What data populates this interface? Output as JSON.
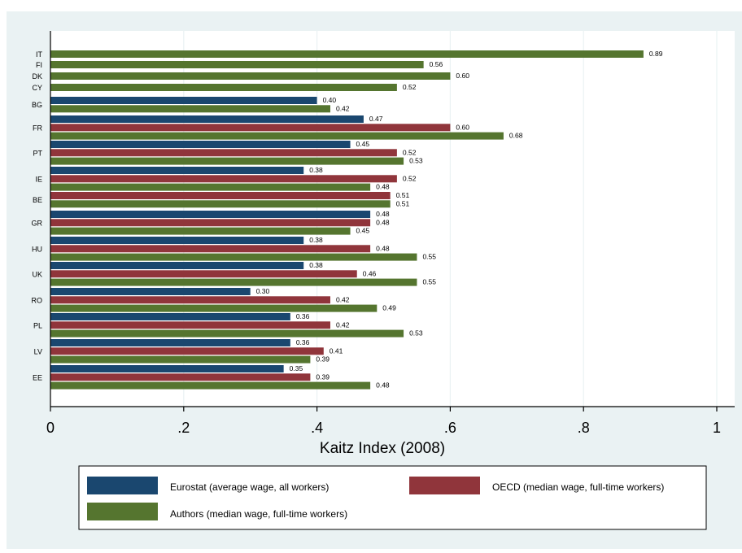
{
  "chart_data": {
    "type": "bar",
    "orientation": "horizontal",
    "categories": [
      "IT",
      "FI",
      "DK",
      "CY",
      "BG",
      "FR",
      "PT",
      "IE",
      "BE",
      "GR",
      "HU",
      "UK",
      "RO",
      "PL",
      "LV",
      "EE"
    ],
    "series": [
      {
        "name": "Eurostat (average wage, all workers)",
        "color": "#1a476f",
        "values": [
          null,
          null,
          null,
          null,
          0.4,
          0.47,
          0.45,
          0.38,
          null,
          0.48,
          0.38,
          0.38,
          0.3,
          0.36,
          0.36,
          0.35
        ]
      },
      {
        "name": "OECD (median wage, full-time workers)",
        "color": "#90353b",
        "values": [
          null,
          null,
          null,
          null,
          null,
          0.6,
          0.52,
          0.52,
          0.51,
          0.48,
          0.48,
          0.46,
          0.42,
          0.42,
          0.41,
          0.39
        ]
      },
      {
        "name": "Authors (median wage, full-time workers)",
        "color": "#55752f",
        "values": [
          0.89,
          0.56,
          0.6,
          0.52,
          0.42,
          0.68,
          0.53,
          0.48,
          0.51,
          0.45,
          0.55,
          0.55,
          0.49,
          0.53,
          0.39,
          0.48
        ]
      }
    ],
    "data_labels": [
      [
        null,
        null,
        null,
        null,
        "0.40",
        "0.47",
        "0.45",
        "0.38",
        null,
        "0.48",
        "0.38",
        "0.38",
        "0.30",
        "0.36",
        "0.36",
        "0.35"
      ],
      [
        null,
        null,
        null,
        null,
        null,
        "0.60",
        "0.52",
        "0.52",
        "0.51",
        "0.48",
        "0.48",
        "0.46",
        "0.42",
        "0.42",
        "0.41",
        "0.39"
      ],
      [
        "0.89",
        "0.56",
        "0.60",
        "0.52",
        "0.42",
        "0.68",
        "0.53",
        "0.48",
        "0.51",
        "0.45",
        "0.55",
        "0.55",
        "0.49",
        "0.53",
        "0.39",
        "0.48"
      ]
    ],
    "xlabel": "Kaitz Index (2008)",
    "xlim": [
      0,
      1.03
    ],
    "xticks": [
      0,
      0.2,
      0.4,
      0.6,
      0.8,
      1
    ],
    "xtick_labels": [
      "0",
      ".2",
      ".4",
      ".6",
      ".8",
      "1"
    ],
    "grid": true,
    "legend_position": "bottom",
    "colors": {
      "outer_background": "#eaf2f3",
      "plot_background": "#ffffff",
      "gridline": "#eaf2f3"
    }
  }
}
